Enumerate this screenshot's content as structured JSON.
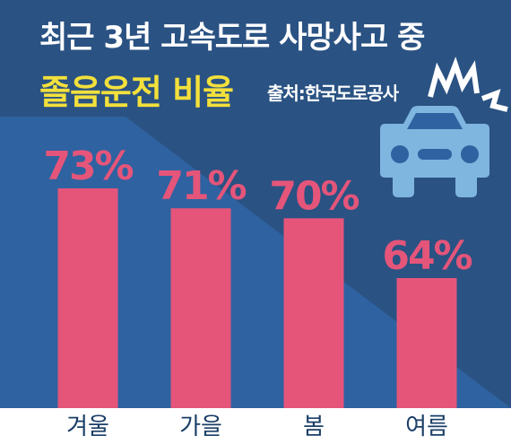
{
  "title": {
    "line1": "최근 3년 고속도로 사망사고 중",
    "line2": "졸음운전 비율"
  },
  "source": "출처:한국도로공사",
  "colors": {
    "background_dark": "#2a5283",
    "background_light": "#2f62a0",
    "bar": "#e5557a",
    "value_label": "#e5557a",
    "title": "#ffffff",
    "highlight": "#f3e03b",
    "category_label": "#1a3e66",
    "car_icon": "#7fb6e0"
  },
  "icon": "car-crash-icon",
  "chart_data": {
    "type": "bar",
    "title": "최근 3년 고속도로 사망사고 중 졸음운전 비율",
    "categories": [
      "겨울",
      "가을",
      "봄",
      "여름"
    ],
    "values": [
      73,
      71,
      70,
      64
    ],
    "value_labels": [
      "73%",
      "71%",
      "70%",
      "64%"
    ],
    "unit": "%",
    "xlabel": "",
    "ylabel": "",
    "ylim": [
      0,
      100
    ],
    "grid": false,
    "legend": "none"
  }
}
